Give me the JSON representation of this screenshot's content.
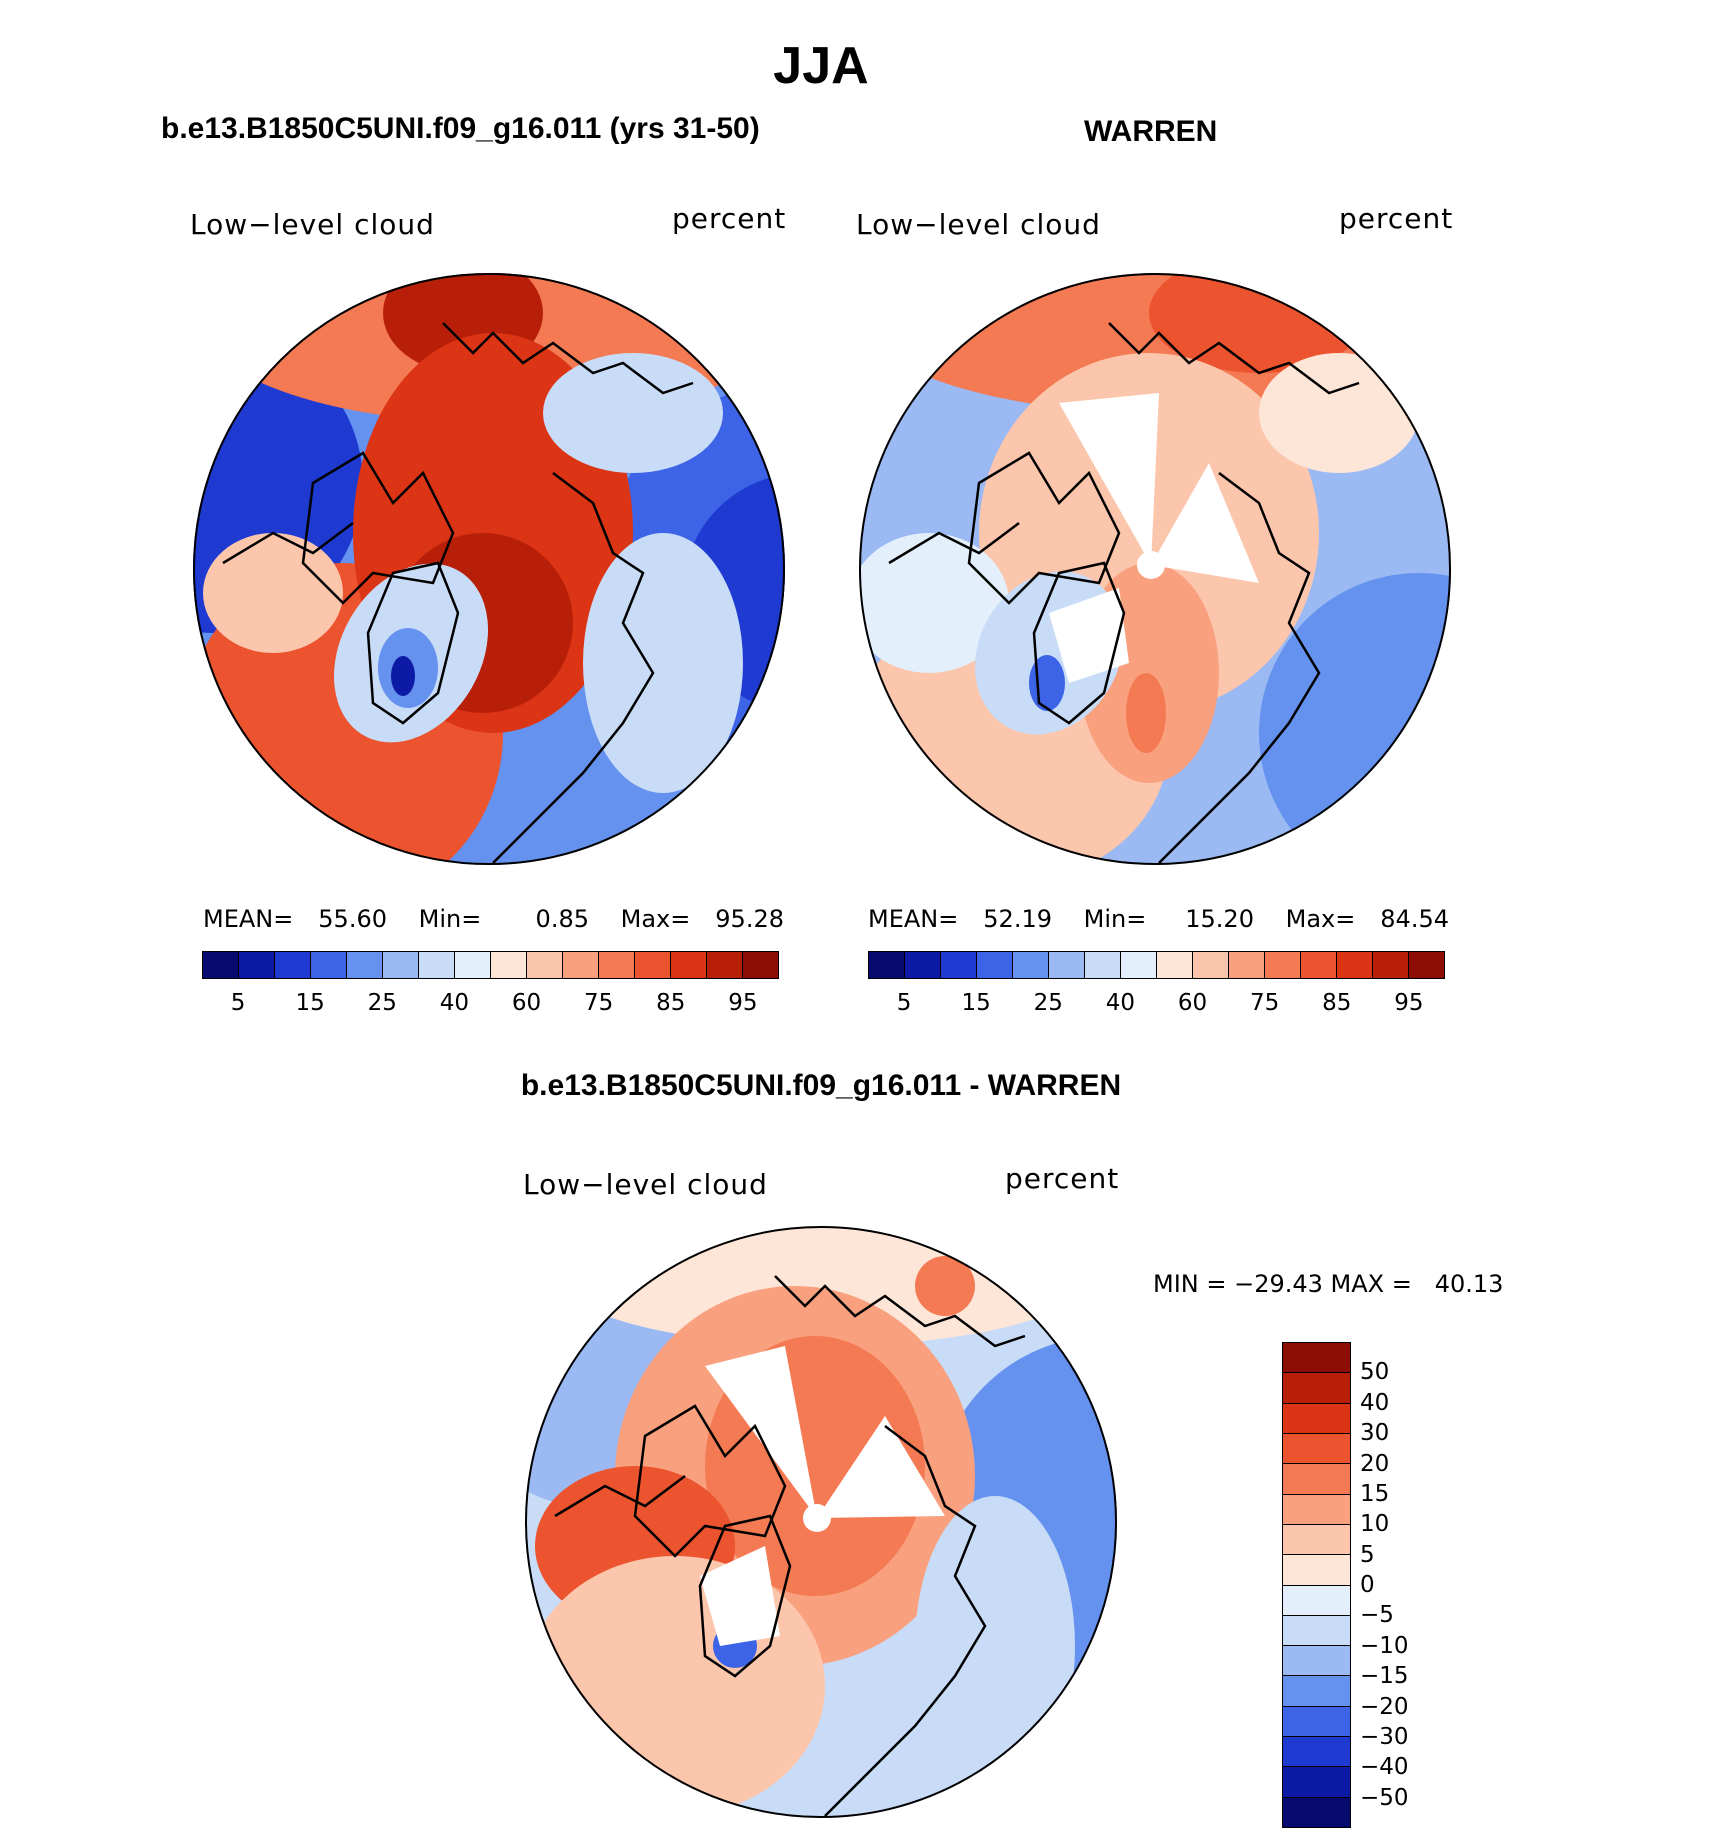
{
  "figure": {
    "season": "JJA",
    "top_left_title": "b.e13.B1850C5UNI.f09_g16.011 (yrs 31-50)",
    "top_right_title": "WARREN",
    "bottom_title": "b.e13.B1850C5UNI.f09_g16.011 - WARREN"
  },
  "chart_data": [
    {
      "type": "heatmap",
      "projection": "polar-stereographic-north",
      "title": "b.e13.B1850C5UNI.f09_g16.011 (yrs 31-50)",
      "left_label": "Low−level cloud",
      "right_label": "percent",
      "stats": {
        "mean_label": "MEAN=",
        "mean": "55.60",
        "min_label": "Min=",
        "min": "0.85",
        "max_label": "Max=",
        "max": "95.28"
      },
      "colorbar_levels": [
        "5",
        "15",
        "25",
        "40",
        "60",
        "75",
        "85",
        "95"
      ],
      "colorbar_colors": [
        "#070a6e",
        "#0c1aa5",
        "#1e3ad1",
        "#3d63e6",
        "#6591ef",
        "#9bbaf4",
        "#c8dcf8",
        "#e3f0fb",
        "#fde6d8",
        "#fcc6ad",
        "#f9a07f",
        "#f37a53",
        "#ec532f",
        "#dc3515",
        "#b81f08",
        "#8c0e04"
      ]
    },
    {
      "type": "heatmap",
      "projection": "polar-stereographic-north",
      "title": "WARREN",
      "left_label": "Low−level cloud",
      "right_label": "percent",
      "stats": {
        "mean_label": "MEAN=",
        "mean": "52.19",
        "min_label": "Min=",
        "min": "15.20",
        "max_label": "Max=",
        "max": "84.54"
      },
      "colorbar_levels": [
        "5",
        "15",
        "25",
        "40",
        "60",
        "75",
        "85",
        "95"
      ],
      "colorbar_colors": [
        "#070a6e",
        "#0c1aa5",
        "#1e3ad1",
        "#3d63e6",
        "#6591ef",
        "#9bbaf4",
        "#c8dcf8",
        "#e3f0fb",
        "#fde6d8",
        "#fcc6ad",
        "#f9a07f",
        "#f37a53",
        "#ec532f",
        "#dc3515",
        "#b81f08",
        "#8c0e04"
      ]
    },
    {
      "type": "heatmap",
      "projection": "polar-stereographic-north",
      "title": "b.e13.B1850C5UNI.f09_g16.011 - WARREN",
      "left_label": "Low−level cloud",
      "right_label": "percent",
      "minmax": "MIN = −29.43 MAX =   40.13",
      "colorbar_levels": [
        "−50",
        "−40",
        "−30",
        "−20",
        "−15",
        "−10",
        "−5",
        "0",
        "5",
        "10",
        "15",
        "20",
        "30",
        "40",
        "50"
      ],
      "colorbar_colors": [
        "#070a6e",
        "#0c1aa5",
        "#1e3ad1",
        "#3d63e6",
        "#6591ef",
        "#9bbaf4",
        "#c8dcf8",
        "#e3f0fb",
        "#fde6d8",
        "#fcc6ad",
        "#f9a07f",
        "#f37a53",
        "#ec532f",
        "#dc3515",
        "#b81f08",
        "#8c0e04"
      ]
    }
  ]
}
